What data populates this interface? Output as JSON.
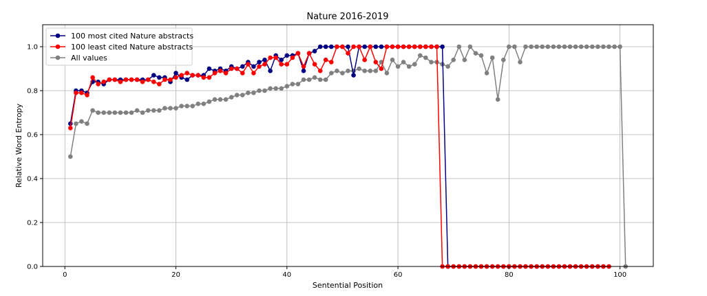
{
  "chart_data": {
    "type": "line",
    "title": "Nature 2016-2019",
    "xlabel": "Sentential Position",
    "ylabel": "Relative Word Entropy",
    "xlim": [
      -4,
      106
    ],
    "ylim": [
      0.0,
      1.1
    ],
    "xticks": [
      0,
      20,
      40,
      60,
      80,
      100
    ],
    "yticks": [
      0.0,
      0.2,
      0.4,
      0.6,
      0.8,
      1.0
    ],
    "xtick_labels": [
      "0",
      "20",
      "40",
      "60",
      "80",
      "100"
    ],
    "ytick_labels": [
      "0.0",
      "0.2",
      "0.4",
      "0.6",
      "0.8",
      "1.0"
    ],
    "grid": true,
    "legend_position": "top-left",
    "series": [
      {
        "name": "100 most cited Nature abstracts",
        "color": "#000080",
        "x": [
          1,
          2,
          3,
          4,
          5,
          6,
          7,
          8,
          9,
          10,
          11,
          12,
          13,
          14,
          15,
          16,
          17,
          18,
          19,
          20,
          21,
          22,
          23,
          24,
          25,
          26,
          27,
          28,
          29,
          30,
          31,
          32,
          33,
          34,
          35,
          36,
          37,
          38,
          39,
          40,
          41,
          42,
          43,
          44,
          45,
          46,
          47,
          48,
          49,
          50,
          51,
          52,
          53,
          54,
          55,
          56,
          57,
          58,
          59,
          60,
          61,
          62,
          63,
          64,
          65,
          66,
          67,
          68,
          69,
          70,
          71,
          72,
          73,
          74,
          75,
          76,
          77,
          78,
          79,
          80,
          81,
          82,
          83,
          84,
          85,
          86,
          87,
          88,
          89,
          90,
          91,
          92,
          93,
          94,
          95,
          96,
          97,
          98
        ],
        "y": [
          0.65,
          0.8,
          0.8,
          0.79,
          0.84,
          0.84,
          0.83,
          0.85,
          0.85,
          0.85,
          0.85,
          0.85,
          0.85,
          0.85,
          0.85,
          0.87,
          0.86,
          0.86,
          0.84,
          0.88,
          0.86,
          0.85,
          0.87,
          0.87,
          0.87,
          0.9,
          0.89,
          0.9,
          0.89,
          0.91,
          0.9,
          0.91,
          0.93,
          0.91,
          0.93,
          0.94,
          0.89,
          0.96,
          0.94,
          0.96,
          0.96,
          0.97,
          0.89,
          0.97,
          0.98,
          1.0,
          1.0,
          1.0,
          1.0,
          1.0,
          1.0,
          0.87,
          1.0,
          1.0,
          1.0,
          1.0,
          1.0,
          1.0,
          1.0,
          1.0,
          1.0,
          1.0,
          1.0,
          1.0,
          1.0,
          1.0,
          1.0,
          1.0,
          0.0,
          0.0,
          0.0,
          0.0,
          0.0,
          0.0,
          0.0,
          0.0,
          0.0,
          0.0,
          0.0,
          0.0,
          0.0,
          0.0,
          0.0,
          0.0,
          0.0,
          0.0,
          0.0,
          0.0,
          0.0,
          0.0,
          0.0,
          0.0,
          0.0,
          0.0,
          0.0,
          0.0,
          0.0,
          0.0
        ]
      },
      {
        "name": "100 least cited Nature abstracts",
        "color": "#ff0000",
        "x": [
          1,
          2,
          3,
          4,
          5,
          6,
          7,
          8,
          9,
          10,
          11,
          12,
          13,
          14,
          15,
          16,
          17,
          18,
          19,
          20,
          21,
          22,
          23,
          24,
          25,
          26,
          27,
          28,
          29,
          30,
          31,
          32,
          33,
          34,
          35,
          36,
          37,
          38,
          39,
          40,
          41,
          42,
          43,
          44,
          45,
          46,
          47,
          48,
          49,
          50,
          51,
          52,
          53,
          54,
          55,
          56,
          57,
          58,
          59,
          60,
          61,
          62,
          63,
          64,
          65,
          66,
          67,
          68,
          69,
          70,
          71,
          72,
          73,
          74,
          75,
          76,
          77,
          78,
          79,
          80,
          81,
          82,
          83,
          84,
          85,
          86,
          87,
          88,
          89,
          90,
          91,
          92,
          93,
          94,
          95,
          96,
          97,
          98
        ],
        "y": [
          0.63,
          0.79,
          0.79,
          0.78,
          0.86,
          0.83,
          0.84,
          0.85,
          0.85,
          0.84,
          0.85,
          0.85,
          0.85,
          0.84,
          0.85,
          0.84,
          0.83,
          0.85,
          0.85,
          0.86,
          0.87,
          0.88,
          0.87,
          0.87,
          0.86,
          0.86,
          0.88,
          0.89,
          0.88,
          0.9,
          0.9,
          0.88,
          0.92,
          0.88,
          0.91,
          0.92,
          0.95,
          0.95,
          0.92,
          0.92,
          0.95,
          0.97,
          0.91,
          0.97,
          0.92,
          0.89,
          0.94,
          0.93,
          1.0,
          1.0,
          0.97,
          1.0,
          1.0,
          0.94,
          1.0,
          0.93,
          0.9,
          1.0,
          1.0,
          1.0,
          1.0,
          1.0,
          1.0,
          1.0,
          1.0,
          1.0,
          1.0,
          0.0,
          0.0,
          0.0,
          0.0,
          0.0,
          0.0,
          0.0,
          0.0,
          0.0,
          0.0,
          0.0,
          0.0,
          0.0,
          0.0,
          0.0,
          0.0,
          0.0,
          0.0,
          0.0,
          0.0,
          0.0,
          0.0,
          0.0,
          0.0,
          0.0,
          0.0,
          0.0,
          0.0,
          0.0,
          0.0,
          0.0
        ]
      },
      {
        "name": "All values",
        "color": "#808080",
        "x": [
          1,
          2,
          3,
          4,
          5,
          6,
          7,
          8,
          9,
          10,
          11,
          12,
          13,
          14,
          15,
          16,
          17,
          18,
          19,
          20,
          21,
          22,
          23,
          24,
          25,
          26,
          27,
          28,
          29,
          30,
          31,
          32,
          33,
          34,
          35,
          36,
          37,
          38,
          39,
          40,
          41,
          42,
          43,
          44,
          45,
          46,
          47,
          48,
          49,
          50,
          51,
          52,
          53,
          54,
          55,
          56,
          57,
          58,
          59,
          60,
          61,
          62,
          63,
          64,
          65,
          66,
          67,
          68,
          69,
          70,
          71,
          72,
          73,
          74,
          75,
          76,
          77,
          78,
          79,
          80,
          81,
          82,
          83,
          84,
          85,
          86,
          87,
          88,
          89,
          90,
          91,
          92,
          93,
          94,
          95,
          96,
          97,
          98,
          99,
          100,
          101
        ],
        "y": [
          0.5,
          0.65,
          0.66,
          0.65,
          0.71,
          0.7,
          0.7,
          0.7,
          0.7,
          0.7,
          0.7,
          0.7,
          0.71,
          0.7,
          0.71,
          0.71,
          0.71,
          0.72,
          0.72,
          0.72,
          0.73,
          0.73,
          0.73,
          0.74,
          0.74,
          0.75,
          0.76,
          0.76,
          0.76,
          0.77,
          0.78,
          0.78,
          0.79,
          0.79,
          0.8,
          0.8,
          0.81,
          0.81,
          0.81,
          0.82,
          0.83,
          0.83,
          0.85,
          0.85,
          0.86,
          0.85,
          0.85,
          0.88,
          0.89,
          0.88,
          0.89,
          0.89,
          0.9,
          0.89,
          0.89,
          0.89,
          0.93,
          0.88,
          0.94,
          0.91,
          0.93,
          0.91,
          0.92,
          0.96,
          0.95,
          0.93,
          0.93,
          0.92,
          0.91,
          0.94,
          1.0,
          0.94,
          1.0,
          0.97,
          0.96,
          0.88,
          0.95,
          0.76,
          0.94,
          1.0,
          1.0,
          0.93,
          1.0,
          1.0,
          1.0,
          1.0,
          1.0,
          1.0,
          1.0,
          1.0,
          1.0,
          1.0,
          1.0,
          1.0,
          1.0,
          1.0,
          1.0,
          1.0,
          1.0,
          1.0,
          0.0
        ]
      }
    ]
  }
}
